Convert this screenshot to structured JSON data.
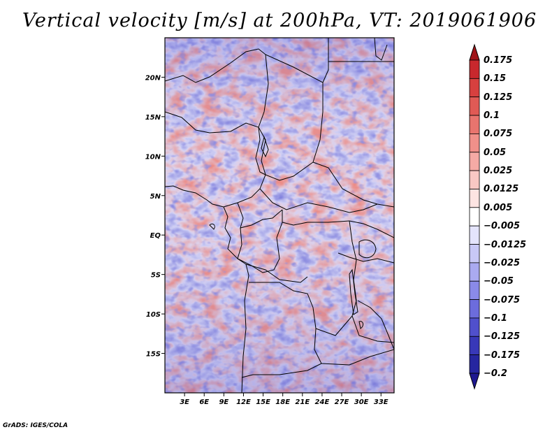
{
  "title": "Vertical velocity [m/s] at 200hPa, VT: 2019061906",
  "credit": "GrADS: IGES/COLA",
  "map": {
    "region": "Central Africa",
    "lat_ticks": [
      {
        "lat": 20,
        "label": "20N"
      },
      {
        "lat": 15,
        "label": "15N"
      },
      {
        "lat": 10,
        "label": "10N"
      },
      {
        "lat": 5,
        "label": "5N"
      },
      {
        "lat": 0,
        "label": "EQ"
      },
      {
        "lat": -5,
        "label": "5S"
      },
      {
        "lat": -10,
        "label": "10S"
      },
      {
        "lat": -15,
        "label": "15S"
      }
    ],
    "lon_ticks": [
      {
        "lon": 3,
        "label": "3E"
      },
      {
        "lon": 6,
        "label": "6E"
      },
      {
        "lon": 9,
        "label": "9E"
      },
      {
        "lon": 12,
        "label": "12E"
      },
      {
        "lon": 15,
        "label": "15E"
      },
      {
        "lon": 18,
        "label": "18E"
      },
      {
        "lon": 21,
        "label": "21E"
      },
      {
        "lon": 24,
        "label": "24E"
      },
      {
        "lon": 27,
        "label": "27E"
      },
      {
        "lon": 30,
        "label": "30E"
      },
      {
        "lon": 33,
        "label": "33E"
      }
    ],
    "lon_range": [
      0,
      35
    ],
    "lat_range": [
      -20,
      25
    ]
  },
  "colorbar": {
    "levels": [
      {
        "label": "0.175",
        "color": "#b4141e"
      },
      {
        "label": "0.15",
        "color": "#c8282d"
      },
      {
        "label": "0.125",
        "color": "#d7403f"
      },
      {
        "label": "0.1",
        "color": "#e05a55"
      },
      {
        "label": "0.075",
        "color": "#e8746e"
      },
      {
        "label": "0.05",
        "color": "#f0908a"
      },
      {
        "label": "0.025",
        "color": "#f5aaa5"
      },
      {
        "label": "0.0125",
        "color": "#f9c8c4"
      },
      {
        "label": "0.005",
        "color": "#fde4e2"
      },
      {
        "label": "-0.005",
        "color": "#ffffff"
      },
      {
        "label": "-0.0125",
        "color": "#e4e4fc"
      },
      {
        "label": "-0.025",
        "color": "#c8c8f6"
      },
      {
        "label": "-0.05",
        "color": "#aaaaf0"
      },
      {
        "label": "-0.075",
        "color": "#8a8ae8"
      },
      {
        "label": "-0.1",
        "color": "#6c6cdc"
      },
      {
        "label": "-0.125",
        "color": "#5050cc"
      },
      {
        "label": "-0.175",
        "color": "#3838b8"
      },
      {
        "label": "-0.2",
        "color": "#2626a0"
      }
    ],
    "top_color": "#a01418",
    "bottom_color": "#1e1890"
  }
}
